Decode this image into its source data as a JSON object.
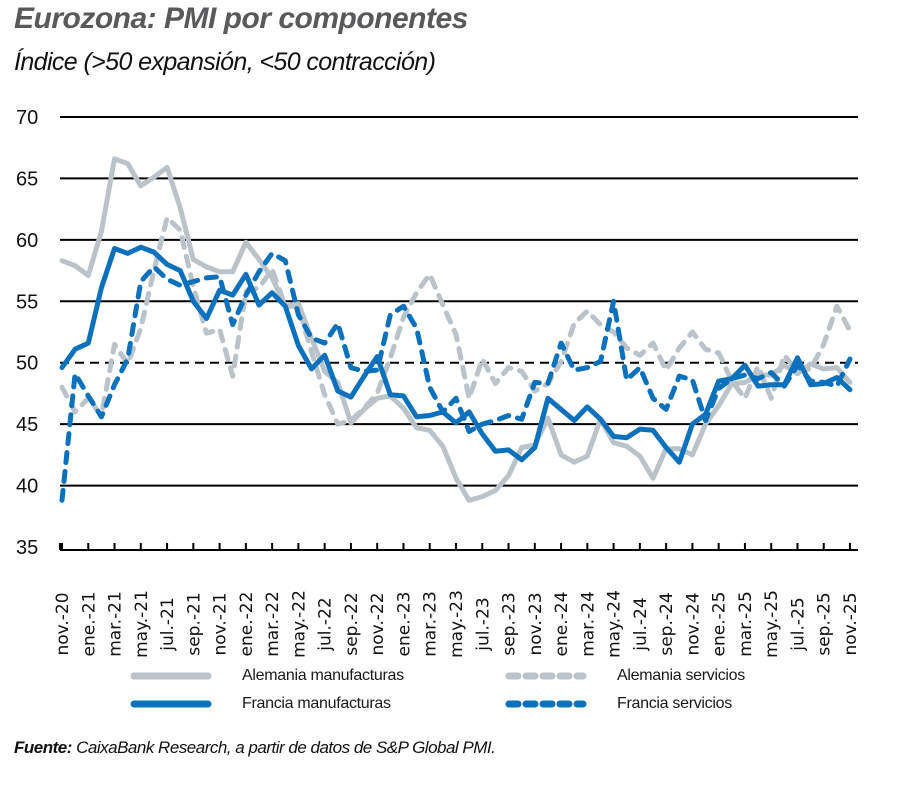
{
  "title": "Eurozona: PMI por componentes",
  "subtitle": "Índice (>50 expansión, <50 contracción)",
  "source": {
    "label": "Fuente:",
    "text": " CaixaBank Research, a partir de datos de S&P Global PMI."
  },
  "colors": {
    "grey": "#b9c3c9",
    "blue": "#0b71bc",
    "grid": "#000000"
  },
  "legend": [
    {
      "name": "Alemania manufacturas",
      "color": "#b9c3c9",
      "style": "solid"
    },
    {
      "name": "Alemania servicios",
      "color": "#b9c3c9",
      "style": "dashed"
    },
    {
      "name": "Francia manufacturas",
      "color": "#0b71bc",
      "style": "solid"
    },
    {
      "name": "Francia servicios",
      "color": "#0b71bc",
      "style": "dashed"
    }
  ],
  "chart_data": {
    "type": "line",
    "title": "Eurozona: PMI por componentes",
    "subtitle": "Índice (>50 expansión, <50 contracción)",
    "xlabel": "",
    "ylabel": "",
    "ylim": [
      35,
      70
    ],
    "yticks": [
      35,
      40,
      45,
      50,
      55,
      60,
      65,
      70
    ],
    "reference_line": {
      "y": 50,
      "style": "dashed"
    },
    "grid": true,
    "legend_position": "bottom",
    "x_tick_labels": [
      "nov.-20",
      "ene.-21",
      "mar.-21",
      "may.-21",
      "jul.-21",
      "sep.-21",
      "nov.-21",
      "ene.-22",
      "mar.-22",
      "may.-22",
      "jul.-22",
      "sep.-22",
      "nov.-22",
      "ene.-23",
      "mar.-23",
      "may.-23",
      "jul.-23",
      "sep.-23",
      "nov.-23",
      "ene.-24",
      "mar.-24",
      "may.-24",
      "jul.-24",
      "sep.-24",
      "nov.-24",
      "ene.-25",
      "mar.-25",
      "may.-25",
      "jul.-25",
      "sep.-25",
      "nov.-25"
    ],
    "x": [
      "nov-20",
      "dic-20",
      "ene-21",
      "feb-21",
      "mar-21",
      "abr-21",
      "may-21",
      "jun-21",
      "jul-21",
      "ago-21",
      "sep-21",
      "oct-21",
      "nov-21",
      "dic-21",
      "ene-22",
      "feb-22",
      "mar-22",
      "abr-22",
      "may-22",
      "jun-22",
      "jul-22",
      "ago-22",
      "sep-22",
      "oct-22",
      "nov-22",
      "dic-22",
      "ene-23",
      "feb-23",
      "mar-23",
      "abr-23",
      "may-23",
      "jun-23",
      "jul-23",
      "ago-23",
      "sep-23",
      "oct-23",
      "nov-23",
      "dic-23",
      "ene-24",
      "feb-24",
      "mar-24",
      "abr-24",
      "may-24",
      "jun-24",
      "jul-24",
      "ago-24",
      "sep-24",
      "oct-24",
      "nov-24",
      "dic-24",
      "ene-25",
      "feb-25",
      "mar-25",
      "abr-25",
      "may-25",
      "jun-25",
      "jul-25",
      "ago-25",
      "sep-25",
      "oct-25",
      "nov-25"
    ],
    "series": [
      {
        "name": "Alemania manufacturas",
        "color": "#b9c3c9",
        "style": "solid",
        "values": [
          58.3,
          57.9,
          57.1,
          60.7,
          66.6,
          66.2,
          64.4,
          65.1,
          65.9,
          62.6,
          58.4,
          57.8,
          57.4,
          57.4,
          59.8,
          58.4,
          56.9,
          54.6,
          54.8,
          52.0,
          49.3,
          48.4,
          45.1,
          46.2,
          47.1,
          47.3,
          46.3,
          44.7,
          44.5,
          43.2,
          40.6,
          38.8,
          39.1,
          39.6,
          40.8,
          43.1,
          43.3,
          45.5,
          42.5,
          41.9,
          42.4,
          45.4,
          43.5,
          43.2,
          42.4,
          40.6,
          43.0,
          43.0,
          42.5,
          45.0,
          46.5,
          48.3,
          48.4,
          49.0,
          49.0,
          49.8,
          49.1,
          49.9,
          49.5,
          49.6,
          48.4
        ]
      },
      {
        "name": "Alemania servicios",
        "color": "#b9c3c9",
        "style": "dashed",
        "values": [
          48.0,
          46.0,
          47.1,
          45.7,
          51.5,
          49.9,
          52.8,
          57.5,
          61.8,
          60.8,
          56.2,
          52.4,
          52.7,
          48.9,
          55.8,
          56.1,
          57.6,
          54.6,
          54.6,
          50.9,
          47.4,
          45.0,
          45.3,
          46.3,
          47.5,
          50.4,
          53.7,
          55.7,
          57.2,
          54.7,
          52.3,
          47.1,
          50.3,
          48.3,
          49.6,
          49.3,
          47.7,
          48.3,
          50.1,
          53.2,
          54.2,
          53.1,
          52.5,
          51.2,
          50.6,
          51.6,
          49.4,
          51.2,
          52.5,
          51.1,
          50.8,
          48.5,
          47.1,
          49.7,
          47.1,
          50.6,
          49.3,
          49.5,
          51.5,
          54.6,
          52.6
        ]
      },
      {
        "name": "Francia manufacturas",
        "color": "#0b71bc",
        "style": "solid",
        "values": [
          49.6,
          51.1,
          51.6,
          56.1,
          59.3,
          58.9,
          59.4,
          59.0,
          58.0,
          57.5,
          55.0,
          53.6,
          55.9,
          55.5,
          57.2,
          54.7,
          55.7,
          54.6,
          51.4,
          49.5,
          50.6,
          47.7,
          47.2,
          48.9,
          50.5,
          47.4,
          47.3,
          45.6,
          45.7,
          46.0,
          45.1,
          46.0,
          44.2,
          42.8,
          42.9,
          42.1,
          43.1,
          47.1,
          46.2,
          45.3,
          46.4,
          45.4,
          44.0,
          43.9,
          44.6,
          44.5,
          43.1,
          41.9,
          45.0,
          45.8,
          48.5,
          48.7,
          49.8,
          48.1,
          48.2,
          48.2,
          50.4,
          48.2,
          48.3,
          48.8,
          47.8
        ]
      },
      {
        "name": "Francia servicios",
        "color": "#0b71bc",
        "style": "dashed",
        "values": [
          38.8,
          49.1,
          47.3,
          45.6,
          48.2,
          50.3,
          56.6,
          57.8,
          56.8,
          56.3,
          56.6,
          56.9,
          57.0,
          53.1,
          55.5,
          57.4,
          58.9,
          58.3,
          53.9,
          52.0,
          51.6,
          53.2,
          49.6,
          49.3,
          49.4,
          53.9,
          54.6,
          52.8,
          48.0,
          46.0,
          47.1,
          44.4,
          45.0,
          45.3,
          45.7,
          45.4,
          48.4,
          48.3,
          51.6,
          49.4,
          49.6,
          50.1,
          55.0,
          48.6,
          49.6,
          47.1,
          46.2,
          48.9,
          48.6,
          45.3,
          47.9,
          48.7,
          49.0,
          48.7,
          49.2,
          48.1,
          49.8,
          48.5,
          48.4,
          48.1,
          50.3
        ]
      }
    ]
  }
}
